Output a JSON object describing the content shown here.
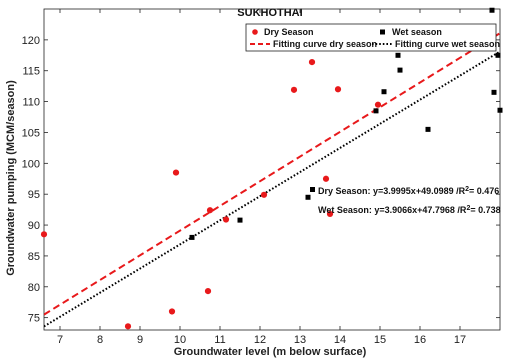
{
  "chart_data": {
    "type": "scatter",
    "title": "SUKHOTHAI",
    "xlabel": "Groundwater level (m below surface)",
    "ylabel": "Groundwater pumping (MCM/season)",
    "xlim": [
      6.6,
      18.0
    ],
    "ylim": [
      73,
      125
    ],
    "xticks": [
      "7",
      "8",
      "9",
      "10",
      "11",
      "12",
      "13",
      "14",
      "15",
      "16",
      "17"
    ],
    "yticks": [
      "75",
      "80",
      "85",
      "90",
      "95",
      "100",
      "105",
      "110",
      "115",
      "120"
    ],
    "grid": false,
    "legend_position": "top-right",
    "series": [
      {
        "name": "Dry Season",
        "color": "#e8191b",
        "marker": "circle",
        "points": [
          [
            6.6,
            88.5
          ],
          [
            8.7,
            73.6
          ],
          [
            9.8,
            76.0
          ],
          [
            9.9,
            98.5
          ],
          [
            10.7,
            79.3
          ],
          [
            10.75,
            92.4
          ],
          [
            11.15,
            90.9
          ],
          [
            12.1,
            94.9
          ],
          [
            12.85,
            111.9
          ],
          [
            13.3,
            116.4
          ],
          [
            13.65,
            97.5
          ],
          [
            13.75,
            91.8
          ],
          [
            13.95,
            112.0
          ],
          [
            14.95,
            109.5
          ]
        ]
      },
      {
        "name": "Wet season",
        "color": "#000000",
        "marker": "square",
        "points": [
          [
            10.3,
            88.0
          ],
          [
            11.5,
            90.8
          ],
          [
            13.2,
            94.5
          ],
          [
            14.9,
            108.5
          ],
          [
            15.1,
            111.6
          ],
          [
            15.45,
            117.5
          ],
          [
            15.5,
            115.1
          ],
          [
            16.2,
            105.5
          ],
          [
            17.8,
            124.8
          ],
          [
            17.85,
            111.5
          ],
          [
            17.95,
            117.5
          ],
          [
            18.0,
            108.6
          ]
        ]
      }
    ],
    "fits": [
      {
        "name": "Fitting curve dry season",
        "color": "#e8191b",
        "style": "dashed",
        "slope": 3.9995,
        "intercept": 49.0989,
        "x_range": [
          6.6,
          18.0
        ],
        "equation": "Dry Season: y=3.9995x+49.0989 /R",
        "r2": "= 0.476"
      },
      {
        "name": "Fitting curve wet season",
        "color": "#000000",
        "style": "dotted",
        "slope": 3.9066,
        "intercept": 47.7968,
        "x_range": [
          6.6,
          18.0
        ],
        "equation": "Wet Season: y=3.9066x+47.7968 /R",
        "r2": "= 0.738"
      }
    ]
  }
}
